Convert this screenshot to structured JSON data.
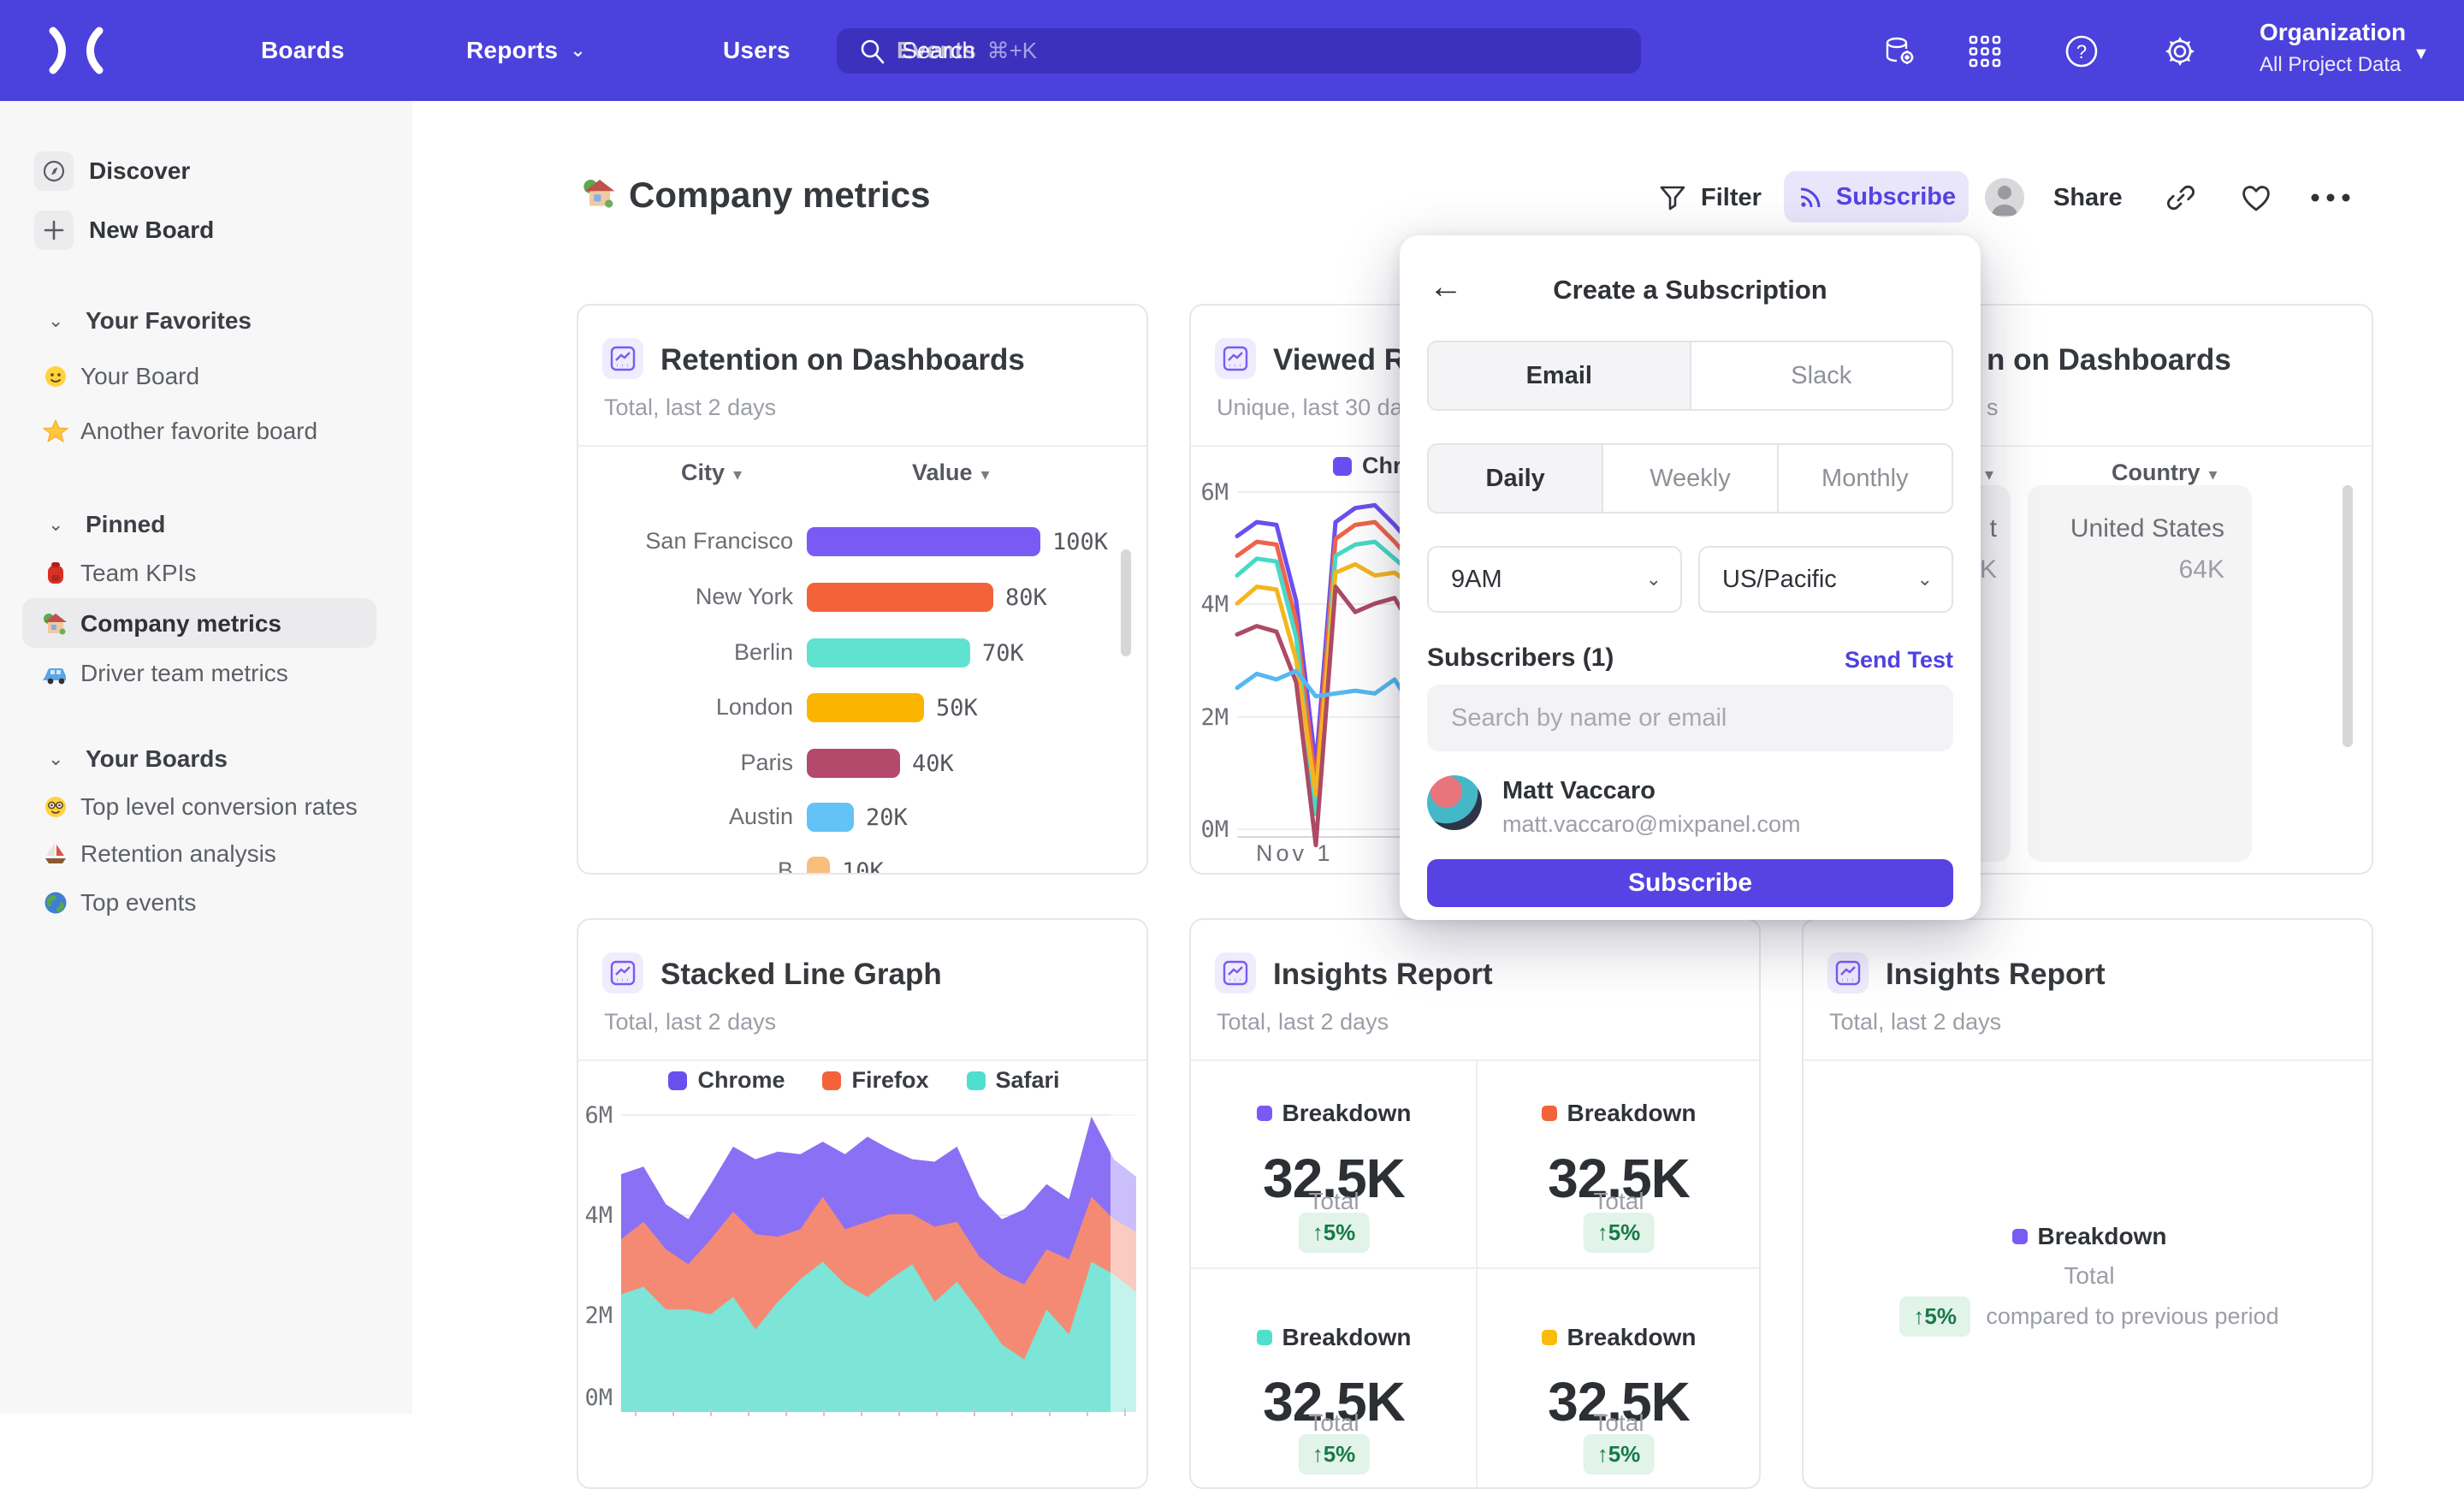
{
  "nav": {
    "logo": "mixpanel",
    "links": [
      {
        "label": "Boards",
        "caret": false
      },
      {
        "label": "Reports",
        "caret": true
      },
      {
        "label": "Users",
        "caret": false
      },
      {
        "label": "Events",
        "caret": false
      }
    ],
    "search": {
      "placeholder": "Search",
      "shortcut": "⌘+K"
    },
    "icons": [
      "data-connections-icon",
      "apps-grid-icon",
      "help-icon",
      "settings-icon"
    ],
    "org": {
      "title": "Organization",
      "subtitle": "All Project Data"
    }
  },
  "sidebar": {
    "top_items": [
      {
        "label": "Discover",
        "icon": "compass"
      },
      {
        "label": "New Board",
        "icon": "plus"
      }
    ],
    "sections": [
      {
        "title": "Your Favorites",
        "items": [
          {
            "label": "Your Board",
            "emoji": "smiley",
            "selected": false
          },
          {
            "label": "Another favorite board",
            "emoji": "star",
            "selected": false
          }
        ]
      },
      {
        "title": "Pinned",
        "items": [
          {
            "label": "Team KPIs",
            "emoji": "backpack",
            "selected": false
          },
          {
            "label": "Company metrics",
            "emoji": "house",
            "selected": true
          },
          {
            "label": "Driver team metrics",
            "emoji": "car",
            "selected": false
          }
        ]
      },
      {
        "title": "Your Boards",
        "items": [
          {
            "label": "Top level conversion rates",
            "emoji": "nerd",
            "selected": false
          },
          {
            "label": "Retention analysis",
            "emoji": "sailboat",
            "selected": false
          },
          {
            "label": "Top events",
            "emoji": "globe",
            "selected": false
          }
        ]
      }
    ]
  },
  "header": {
    "title": "Company metrics",
    "filter_label": "Filter",
    "subscribe_label": "Subscribe",
    "share_label": "Share"
  },
  "modal": {
    "title": "Create a Subscription",
    "channel_tabs": [
      {
        "label": "Email",
        "selected": true
      },
      {
        "label": "Slack",
        "selected": false
      }
    ],
    "frequency_tabs": [
      {
        "label": "Daily",
        "selected": true
      },
      {
        "label": "Weekly",
        "selected": false
      },
      {
        "label": "Monthly",
        "selected": false
      }
    ],
    "time_value": "9AM",
    "timezone_value": "US/Pacific",
    "subscribers_label": "Subscribers (1)",
    "send_test_label": "Send Test",
    "search_placeholder": "Search by name or email",
    "subscriber": {
      "name": "Matt Vaccaro",
      "email": "matt.vaccaro@mixpanel.com"
    },
    "submit_label": "Subscribe"
  },
  "cards": {
    "retention": {
      "title": "Retention on Dashboards",
      "subtitle": "Total, last 2 days"
    },
    "viewed": {
      "title_fragment": "Viewed Re",
      "subtitle_fragment": "Unique, last 30 da",
      "legend_fragment": "Chr",
      "x_tick": "Nov 1"
    },
    "retention_right": {
      "title_fragment": "n on Dashboards",
      "subtitle_fragment": "s",
      "country_header": "Country",
      "row": {
        "label": "United States",
        "value": "64K"
      },
      "clipped_cell_fragments": [
        "t",
        "K"
      ]
    },
    "stacked": {
      "title": "Stacked Line Graph",
      "subtitle": "Total, last 2 days"
    },
    "insights_grid": {
      "title": "Insights Report",
      "subtitle": "Total, last 2 days",
      "quadrants": [
        {
          "label": "Breakdown",
          "value": "32.5K",
          "sub": "Total",
          "delta": "↑5%",
          "color": "#7a5af5"
        },
        {
          "label": "Breakdown",
          "value": "32.5K",
          "sub": "Total",
          "delta": "↑5%",
          "color": "#f4623a"
        },
        {
          "label": "Breakdown",
          "value": "32.5K",
          "sub": "Total",
          "delta": "↑5%",
          "color": "#4fe0cd"
        },
        {
          "label": "Breakdown",
          "value": "32.5K",
          "sub": "Total",
          "delta": "↑5%",
          "color": "#fbbc09"
        }
      ]
    },
    "insights_summary": {
      "title": "Insights Report",
      "subtitle": "Total, last 2 days",
      "label": "Breakdown",
      "color": "#7a5af5",
      "sub": "Total",
      "delta": "↑5%",
      "note": "compared to previous period"
    }
  },
  "chart_data": [
    {
      "id": "retention_bars",
      "type": "bar",
      "orientation": "horizontal",
      "title": "Retention on Dashboards",
      "subtitle": "Total, last 2 days",
      "columns": [
        "City",
        "Value"
      ],
      "categories": [
        "San Francisco",
        "New York",
        "Berlin",
        "London",
        "Paris",
        "Austin"
      ],
      "values_k": [
        100,
        80,
        70,
        50,
        40,
        20
      ],
      "value_labels": [
        "100K",
        "80K",
        "70K",
        "50K",
        "40K",
        "20K"
      ],
      "colors": [
        "#7a5af5",
        "#f4623a",
        "#5fe3d0",
        "#fbb500",
        "#b5496b",
        "#63c3f7"
      ],
      "partial_row": {
        "category_fragment": "B",
        "value_k": 10,
        "value_label": "10K",
        "color": "#f9bd7e"
      },
      "xlim_k": [
        0,
        100
      ]
    },
    {
      "id": "viewed_lines",
      "type": "line",
      "title_fragment": "Viewed Re",
      "subtitle_fragment": "Unique, last 30 da",
      "legend_visible_fragment": "Chr",
      "y_ticks": [
        "6M",
        "4M",
        "2M",
        "0M"
      ],
      "ylim_m": [
        0,
        6.8
      ],
      "x_tick_label": "Nov 1",
      "series": [
        {
          "name": "purple",
          "color": "#6a4ff0",
          "values_m": [
            5.2,
            5.45,
            5.4,
            4.05,
            1.1,
            5.45,
            5.7,
            5.75,
            5.4,
            5.0
          ]
        },
        {
          "name": "red",
          "color": "#f0634b",
          "values_m": [
            4.85,
            5.1,
            5.05,
            3.7,
            0.75,
            5.15,
            5.4,
            5.45,
            5.1,
            4.7
          ]
        },
        {
          "name": "teal",
          "color": "#47d9c6",
          "values_m": [
            4.5,
            4.8,
            4.75,
            3.4,
            0.25,
            4.85,
            5.05,
            5.1,
            4.8,
            4.5
          ]
        },
        {
          "name": "amber",
          "color": "#f5b520",
          "values_m": [
            4.0,
            4.3,
            4.25,
            3.0,
            0.6,
            4.55,
            4.7,
            4.5,
            4.55,
            4.3
          ]
        },
        {
          "name": "maroon",
          "color": "#ad4a66",
          "values_m": [
            3.45,
            3.6,
            3.5,
            2.6,
            -0.3,
            4.3,
            3.85,
            4.0,
            4.1,
            3.5
          ]
        },
        {
          "name": "blue",
          "color": "#56b8f0",
          "values_m": [
            2.5,
            2.75,
            2.65,
            2.8,
            2.35,
            2.4,
            2.45,
            2.4,
            2.65,
            2.1
          ]
        }
      ]
    },
    {
      "id": "stacked_area",
      "type": "area",
      "stacked": true,
      "title": "Stacked Line Graph",
      "legend": [
        "Chrome",
        "Firefox",
        "Safari"
      ],
      "legend_colors": [
        "#6a4ff0",
        "#f4623a",
        "#4fe0cd"
      ],
      "area_colors": {
        "Chrome": "#8a70f5",
        "Firefox": "#f58a74",
        "Safari": "#7de4d8"
      },
      "y_ticks": [
        "6M",
        "4M",
        "2M",
        "0M"
      ],
      "ylim_m": [
        0,
        6
      ],
      "series_bottom_up": [
        {
          "name": "Safari",
          "values_m": [
            2.35,
            2.5,
            2.05,
            2.05,
            1.95,
            2.3,
            1.65,
            2.2,
            2.65,
            3.0,
            2.55,
            2.3,
            2.65,
            2.95,
            2.2,
            2.6,
            2.0,
            1.35,
            1.05,
            2.05,
            1.55,
            3.0,
            2.75,
            2.4
          ]
        },
        {
          "name": "Firefox",
          "values_m": [
            1.1,
            1.3,
            1.2,
            0.9,
            1.5,
            1.7,
            1.9,
            1.3,
            1.0,
            1.3,
            1.1,
            1.5,
            1.3,
            1.0,
            1.5,
            1.2,
            1.1,
            1.4,
            1.5,
            1.2,
            1.5,
            1.3,
            1.1,
            1.2
          ]
        },
        {
          "name": "Chrome",
          "values_m": [
            1.3,
            1.1,
            0.9,
            0.9,
            1.1,
            1.3,
            1.5,
            1.7,
            1.5,
            1.1,
            1.5,
            1.7,
            1.3,
            1.1,
            1.3,
            1.5,
            1.2,
            1.1,
            1.5,
            1.3,
            1.2,
            1.6,
            1.2,
            1.1
          ]
        }
      ]
    },
    {
      "id": "insights_breakdowns",
      "type": "table",
      "title": "Insights Report",
      "metrics": [
        {
          "label": "Breakdown",
          "display": "32.5K",
          "value_k": 32.5,
          "sub": "Total",
          "delta_pct": 5,
          "direction": "up",
          "color": "#7a5af5"
        },
        {
          "label": "Breakdown",
          "display": "32.5K",
          "value_k": 32.5,
          "sub": "Total",
          "delta_pct": 5,
          "direction": "up",
          "color": "#f4623a"
        },
        {
          "label": "Breakdown",
          "display": "32.5K",
          "value_k": 32.5,
          "sub": "Total",
          "delta_pct": 5,
          "direction": "up",
          "color": "#4fe0cd"
        },
        {
          "label": "Breakdown",
          "display": "32.5K",
          "value_k": 32.5,
          "sub": "Total",
          "delta_pct": 5,
          "direction": "up",
          "color": "#fbbc09"
        }
      ]
    },
    {
      "id": "insights_summary",
      "type": "table",
      "title": "Insights Report",
      "metrics": [
        {
          "label": "Breakdown",
          "sub": "Total",
          "delta_pct": 5,
          "direction": "up",
          "note": "compared to previous period",
          "color": "#7a5af5"
        }
      ]
    }
  ],
  "colors": {
    "nav_bg": "#4b41dc",
    "accent": "#5743e3",
    "badge_bg": "#e2f3ea",
    "badge_text": "#177a48",
    "card_border": "#e7e7e9",
    "sidebar_bg": "#f7f7f8"
  }
}
